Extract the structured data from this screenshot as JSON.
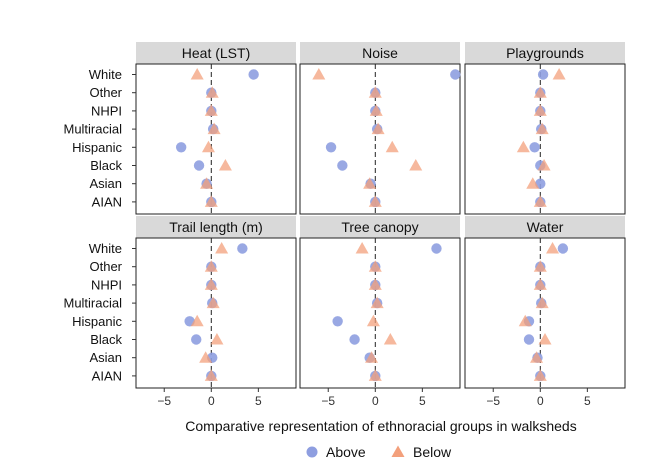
{
  "chart_data": {
    "type": "scatter",
    "xlabel": "Comparative representation of ethnoracial groups in walksheds",
    "xlim": [
      -8,
      9
    ],
    "xticks": [
      -5,
      0,
      5
    ],
    "categories": [
      "White",
      "Other",
      "NHPI",
      "Multiracial",
      "Hispanic",
      "Black",
      "Asian",
      "AIAN"
    ],
    "legend": {
      "placement": "bottom",
      "entries": [
        {
          "name": "Above",
          "shape": "circle",
          "color": "#8E9EE0"
        },
        {
          "name": "Below",
          "shape": "triangle",
          "color": "#F3A07C"
        }
      ]
    },
    "panels": [
      {
        "title": "Heat (LST)",
        "above": [
          4.5,
          0.0,
          0.0,
          0.2,
          -3.2,
          -1.3,
          -0.5,
          0.0
        ],
        "below": [
          -1.5,
          0.1,
          0.0,
          0.3,
          -0.3,
          1.5,
          -0.5,
          0.0
        ]
      },
      {
        "title": "Noise",
        "above": [
          8.5,
          0.0,
          0.0,
          0.2,
          -4.7,
          -3.5,
          -0.5,
          0.0
        ],
        "below": [
          -6.0,
          0.0,
          0.1,
          0.3,
          1.8,
          4.3,
          -0.6,
          0.0
        ]
      },
      {
        "title": "Playgrounds",
        "above": [
          0.3,
          0.0,
          0.0,
          0.1,
          -0.6,
          0.0,
          0.0,
          0.0
        ],
        "below": [
          2.0,
          0.0,
          0.0,
          0.2,
          -1.8,
          0.4,
          -0.8,
          0.0
        ]
      },
      {
        "title": "Trail length (m)",
        "above": [
          3.3,
          0.0,
          0.0,
          0.1,
          -2.3,
          -1.6,
          0.1,
          0.0
        ],
        "below": [
          1.1,
          0.0,
          0.0,
          0.2,
          -1.5,
          0.6,
          -0.6,
          0.0
        ]
      },
      {
        "title": "Tree canopy",
        "above": [
          6.5,
          0.0,
          0.0,
          0.2,
          -4.0,
          -2.2,
          -0.6,
          0.0
        ],
        "below": [
          -1.4,
          0.0,
          0.0,
          0.2,
          -0.2,
          1.6,
          -0.4,
          0.0
        ]
      },
      {
        "title": "Water",
        "above": [
          2.4,
          0.0,
          0.0,
          0.1,
          -1.2,
          -1.2,
          -0.3,
          0.0
        ],
        "below": [
          1.3,
          0.0,
          0.0,
          0.2,
          -1.6,
          0.5,
          -0.4,
          0.0
        ]
      }
    ]
  }
}
